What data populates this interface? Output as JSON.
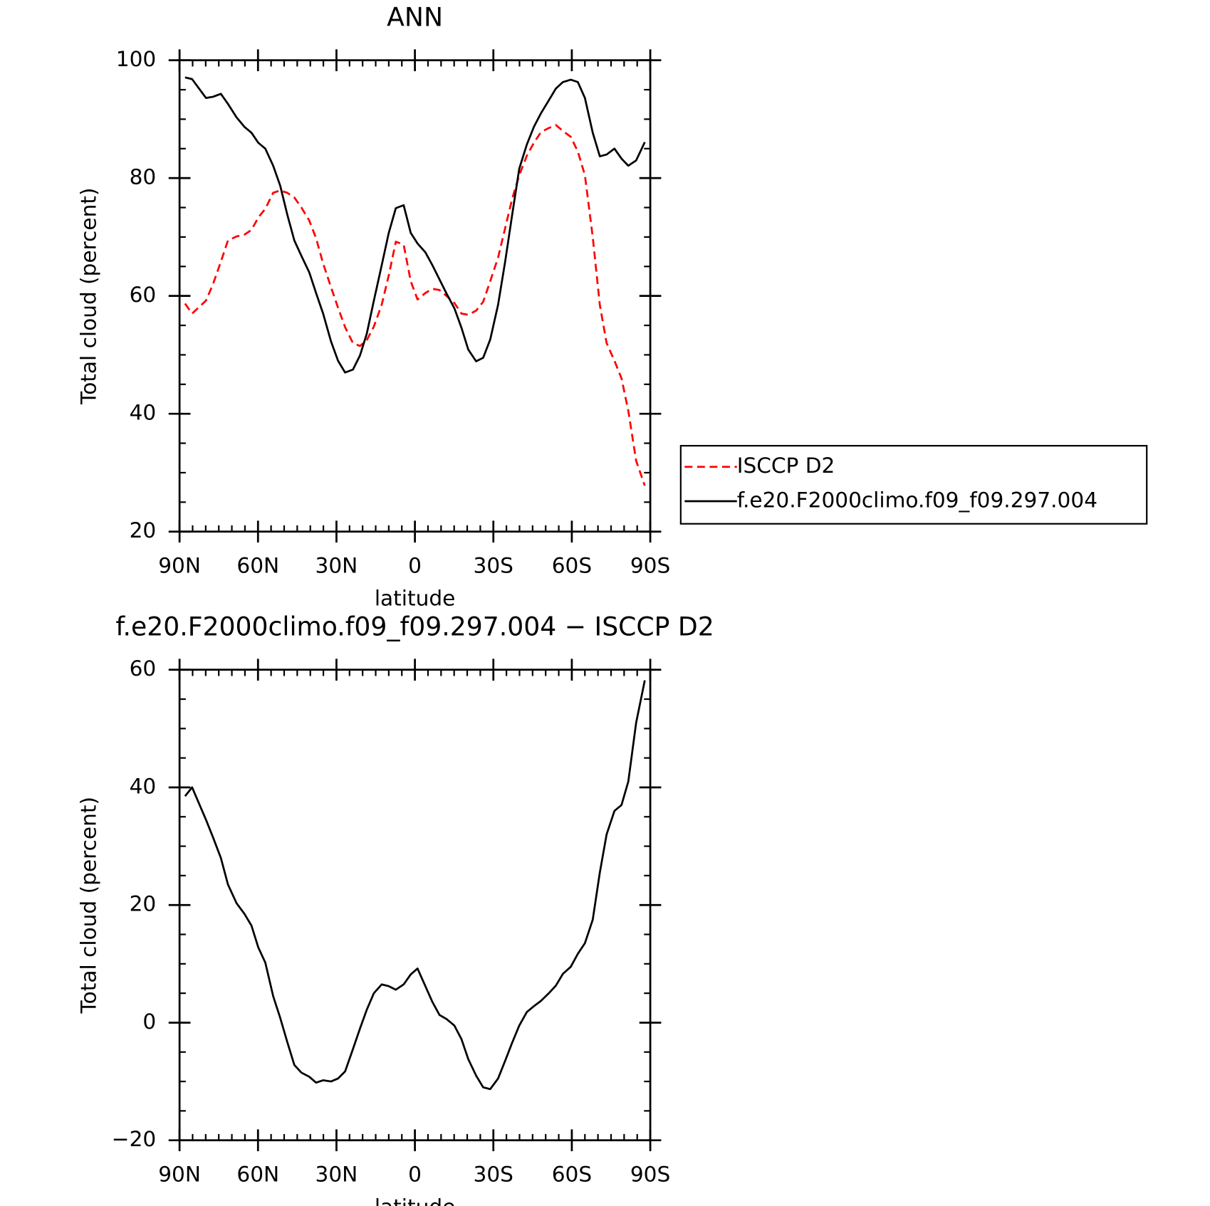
{
  "chart_data": [
    {
      "type": "line",
      "title": "ANN",
      "xlabel": "latitude",
      "ylabel": "Total cloud (percent)",
      "legend": "right",
      "x": [
        87.9,
        85.2,
        79.9,
        77.2,
        74.2,
        71.5,
        68.2,
        65.2,
        62.5,
        59.9,
        57.2,
        54.2,
        51.5,
        48.8,
        46.1,
        43.4,
        40.4,
        37.8,
        35.1,
        32.1,
        29.4,
        26.7,
        23.7,
        21.0,
        18.4,
        15.7,
        12.7,
        10.0,
        7.3,
        4.3,
        1.6,
        -1.0,
        -4.0,
        -6.7,
        -9.4,
        -12.1,
        -15.1,
        -17.8,
        -20.4,
        -23.4,
        -26.1,
        -28.8,
        -31.8,
        -34.5,
        -37.2,
        -39.9,
        -42.8,
        -45.5,
        -48.2,
        -51.2,
        -53.9,
        -56.6,
        -59.6,
        -62.3,
        -65.0,
        -68.0,
        -70.7,
        -73.3,
        -76.3,
        -79.0,
        -81.6,
        -84.6,
        -87.9
      ],
      "xlim": [
        90,
        -90
      ],
      "xticks": [
        {
          "value": 90,
          "label": "90N"
        },
        {
          "value": 60,
          "label": "60N"
        },
        {
          "value": 30,
          "label": "30N"
        },
        0,
        {
          "value": -30,
          "label": "30S"
        },
        {
          "value": -60,
          "label": "60S"
        },
        {
          "value": -90,
          "label": "90S"
        }
      ],
      "ylim": [
        20,
        100
      ],
      "yticks": [
        20,
        40,
        60,
        80,
        100
      ],
      "series": [
        {
          "name": "ISCCP D2",
          "color": "#ff0000",
          "dashed": true,
          "values": [
            58.7,
            57.0,
            59.2,
            62,
            65.8,
            69.4,
            70.1,
            70.4,
            71.2,
            73.3,
            74.8,
            77.5,
            77.9,
            77.5,
            76.7,
            75,
            72.8,
            69.8,
            65.5,
            61.5,
            58,
            54.7,
            52,
            51.5,
            52.5,
            54.8,
            58.5,
            63.5,
            69.2,
            68.7,
            62.5,
            59.4,
            60.5,
            61.2,
            61,
            60,
            58.8,
            57,
            56.8,
            57.5,
            59,
            62.5,
            66.5,
            71.5,
            76.5,
            80.5,
            83.8,
            86,
            87.8,
            88.5,
            89,
            88,
            87,
            84.5,
            80.5,
            70,
            58.5,
            52,
            49,
            46,
            40.5,
            32,
            27.8
          ]
        },
        {
          "name": "f.e20.F2000climo.f09_f09.297.004",
          "color": "#000000",
          "dashed": false,
          "values": [
            97.1,
            96.8,
            93.6,
            93.8,
            94.3,
            92.6,
            90.3,
            88.7,
            87.7,
            86.0,
            85.0,
            82.1,
            78.7,
            73.8,
            69.4,
            66.8,
            64.0,
            60.5,
            57.0,
            52.3,
            49.0,
            47.0,
            47.5,
            49.9,
            53.6,
            59.2,
            65.2,
            70.7,
            74.9,
            75.4,
            70.7,
            68.9,
            67.4,
            65.2,
            62.8,
            60.4,
            57.9,
            54.6,
            50.9,
            48.9,
            49.5,
            52.6,
            58.5,
            65.8,
            73.8,
            81.6,
            85.7,
            88.7,
            91.0,
            93.2,
            95.2,
            96.3,
            96.7,
            96.3,
            93.6,
            87.7,
            83.7,
            84.0,
            85.0,
            83.3,
            82.1,
            83.0,
            86.1
          ]
        }
      ]
    },
    {
      "type": "line",
      "title": "f.e20.F2000climo.f09_f09.297.004 − ISCCP D2",
      "xlabel": "latitude",
      "ylabel": "Total cloud (percent)",
      "x": [
        87.9,
        85.2,
        79.9,
        77.2,
        74.2,
        71.5,
        68.2,
        65.2,
        62.5,
        59.9,
        57.2,
        54.2,
        51.5,
        48.8,
        46.1,
        43.4,
        40.4,
        37.8,
        35.1,
        32.1,
        29.4,
        26.7,
        23.7,
        21.0,
        18.4,
        15.7,
        12.7,
        10.0,
        7.3,
        4.3,
        1.6,
        -1.0,
        -4.0,
        -6.7,
        -9.4,
        -12.1,
        -15.1,
        -17.8,
        -20.4,
        -23.4,
        -26.1,
        -28.8,
        -31.8,
        -34.5,
        -37.2,
        -39.9,
        -42.8,
        -45.5,
        -48.2,
        -51.2,
        -53.9,
        -56.6,
        -59.6,
        -62.3,
        -65.0,
        -68.0,
        -70.7,
        -73.3,
        -76.3,
        -79.0,
        -81.6,
        -84.6,
        -87.9
      ],
      "xlim": [
        90,
        -90
      ],
      "xticks": [
        {
          "value": 90,
          "label": "90N"
        },
        {
          "value": 60,
          "label": "60N"
        },
        {
          "value": 30,
          "label": "30N"
        },
        0,
        {
          "value": -30,
          "label": "30S"
        },
        {
          "value": -60,
          "label": "60S"
        },
        {
          "value": -90,
          "label": "90S"
        }
      ],
      "ylim": [
        -20,
        60
      ],
      "yticks": [
        {
          "value": -20,
          "label": "−20"
        },
        0,
        20,
        40,
        60
      ],
      "series": [
        {
          "color": "#000000",
          "dashed": false,
          "values": [
            38.5,
            40,
            34.5,
            31.5,
            28,
            23.5,
            20.3,
            18.5,
            16.5,
            12.8,
            10.2,
            4.5,
            0.8,
            -3.3,
            -7.2,
            -8.5,
            -9.2,
            -10.2,
            -9.8,
            -10,
            -9.5,
            -8.3,
            -4.5,
            -1,
            2.2,
            5,
            6.5,
            6.2,
            5.6,
            6.5,
            8.2,
            9.2,
            6.2,
            3.5,
            1.3,
            0.6,
            -0.5,
            -2.8,
            -6.2,
            -9,
            -11,
            -11.3,
            -9.5,
            -6.5,
            -3.4,
            -0.5,
            1.8,
            2.8,
            3.7,
            5,
            6.3,
            8.3,
            9.5,
            11.7,
            13.5,
            17.5,
            25.5,
            32,
            36,
            37,
            41,
            51,
            58.2
          ]
        }
      ]
    }
  ]
}
